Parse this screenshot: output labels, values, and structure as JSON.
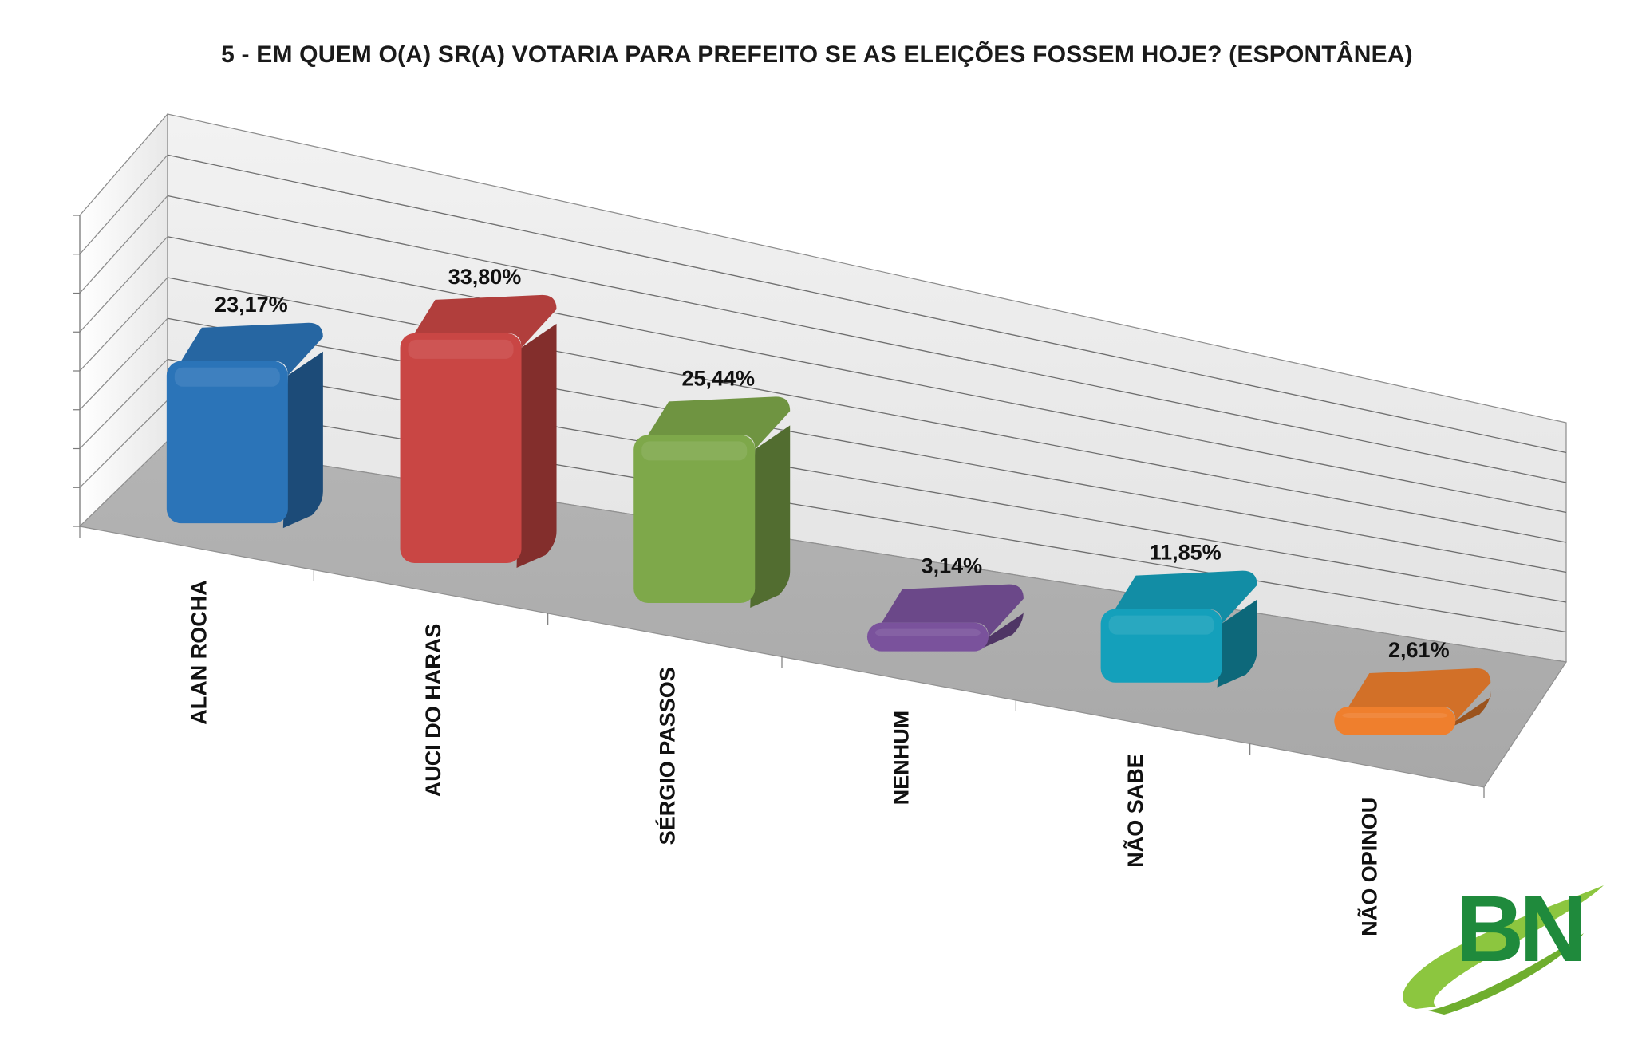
{
  "chart_data": {
    "type": "bar",
    "title": "5 - EM QUEM O(A) SR(A) VOTARIA PARA PREFEITO SE AS ELEIÇÕES FOSSEM HOJE? (ESPONTÂNEA)",
    "categories": [
      "ALAN ROCHA",
      "AUCI DO HARAS",
      "SÉRGIO PASSOS",
      "NENHUM",
      "NÃO SABE",
      "NÃO OPINOU"
    ],
    "values": [
      23.17,
      33.8,
      25.44,
      3.14,
      11.85,
      2.61
    ],
    "data_labels": [
      "23,17%",
      "33,80%",
      "25,44%",
      "3,14%",
      "11,85%",
      "2,61%"
    ],
    "colors": [
      "#2b74b8",
      "#c94644",
      "#7ea84a",
      "#7a529c",
      "#14a0bb",
      "#ef7f2d"
    ],
    "ylim": [
      0,
      40
    ],
    "grid": true,
    "legend": "none",
    "xlabel": "",
    "ylabel": ""
  },
  "logo": {
    "text": "BN",
    "color": "#1f8a3c",
    "swoosh_color": "#8cc63f"
  }
}
